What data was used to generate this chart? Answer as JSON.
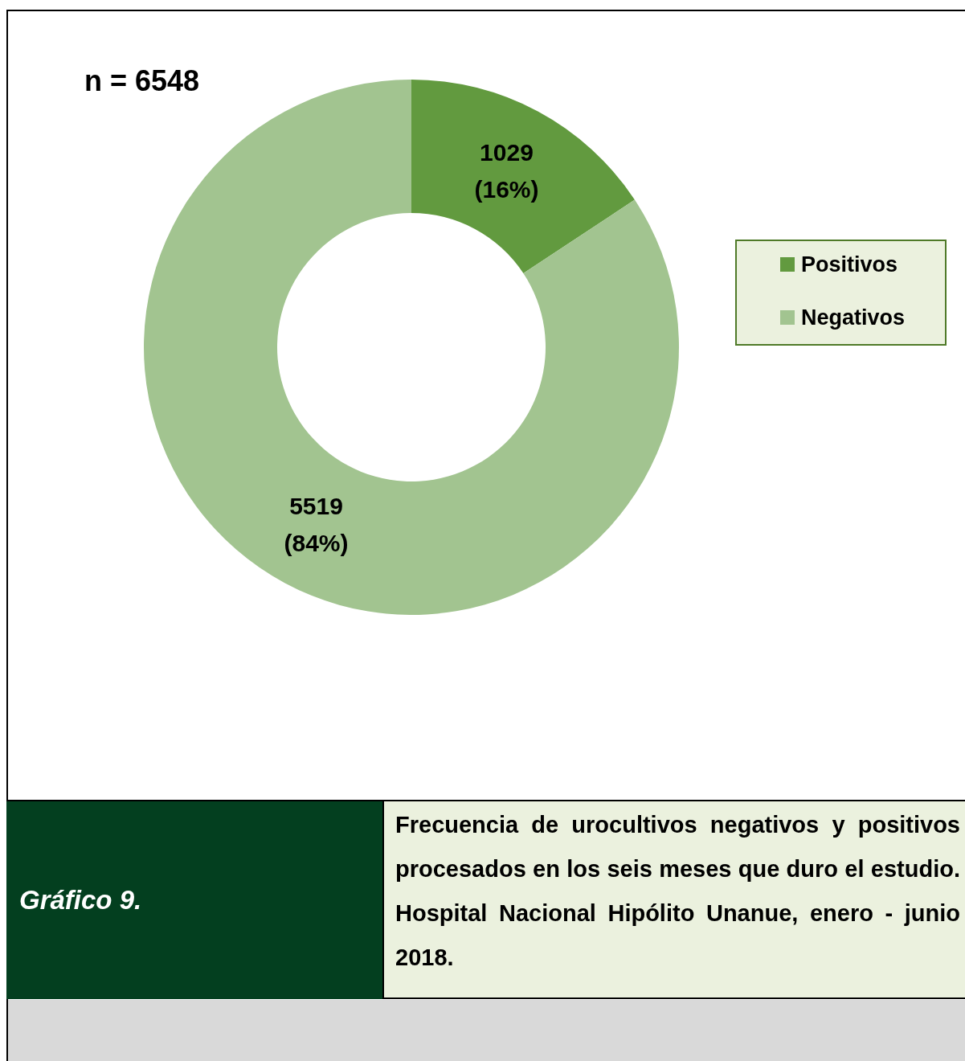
{
  "chart_data": {
    "type": "donut",
    "title": "Gráfico 9.",
    "subtitle": "Frecuencia de urocultivos negativos y positivos procesados en los seis meses que duro el estudio.  Hospital Nacional Hipólito Unanue, enero - junio 2018.",
    "categories": [
      "Positivos",
      "Negativos"
    ],
    "values": [
      1029,
      5519
    ],
    "colors": [
      "#629a3f",
      "#a2c490"
    ],
    "value_labels": [
      "1029 (16%)",
      "5519 (84%)"
    ],
    "annotations": [
      "n = 6548"
    ],
    "legend": "right"
  }
}
